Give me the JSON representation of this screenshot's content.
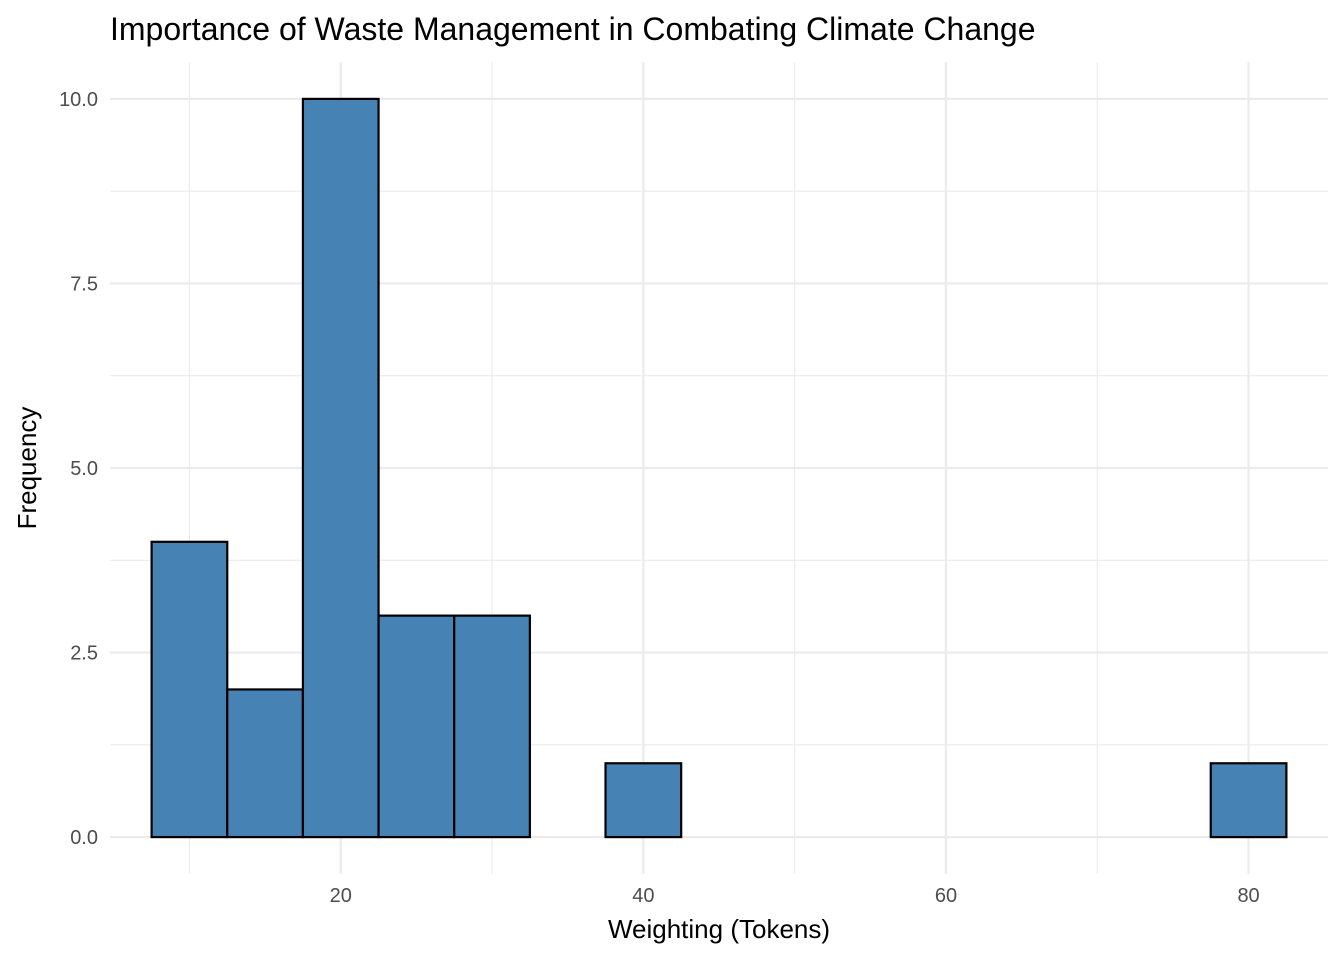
{
  "chart_data": {
    "type": "bar",
    "subtype": "histogram",
    "title": "Importance of Waste Management in Combating Climate Change",
    "xlabel": "Weighting (Tokens)",
    "ylabel": "Frequency",
    "bin_width": 5,
    "bins": [
      {
        "start": 7.5,
        "end": 12.5,
        "count": 4
      },
      {
        "start": 12.5,
        "end": 17.5,
        "count": 2
      },
      {
        "start": 17.5,
        "end": 22.5,
        "count": 10
      },
      {
        "start": 22.5,
        "end": 27.5,
        "count": 3
      },
      {
        "start": 27.5,
        "end": 32.5,
        "count": 3
      },
      {
        "start": 32.5,
        "end": 37.5,
        "count": 0
      },
      {
        "start": 37.5,
        "end": 42.5,
        "count": 1
      },
      {
        "start": 42.5,
        "end": 47.5,
        "count": 0
      },
      {
        "start": 47.5,
        "end": 52.5,
        "count": 0
      },
      {
        "start": 52.5,
        "end": 57.5,
        "count": 0
      },
      {
        "start": 57.5,
        "end": 62.5,
        "count": 0
      },
      {
        "start": 62.5,
        "end": 67.5,
        "count": 0
      },
      {
        "start": 67.5,
        "end": 72.5,
        "count": 0
      },
      {
        "start": 72.5,
        "end": 77.5,
        "count": 0
      },
      {
        "start": 77.5,
        "end": 82.5,
        "count": 1
      }
    ],
    "xlim": [
      4.75,
      85.25
    ],
    "ylim": [
      -0.5,
      10.5
    ],
    "x_ticks": [
      {
        "value": 20,
        "label": "20"
      },
      {
        "value": 40,
        "label": "40"
      },
      {
        "value": 60,
        "label": "60"
      },
      {
        "value": 80,
        "label": "80"
      }
    ],
    "x_minor_ticks": [
      10,
      30,
      50,
      70
    ],
    "y_ticks": [
      {
        "value": 0,
        "label": "0.0"
      },
      {
        "value": 2.5,
        "label": "2.5"
      },
      {
        "value": 5,
        "label": "5.0"
      },
      {
        "value": 7.5,
        "label": "7.5"
      },
      {
        "value": 10,
        "label": "10.0"
      }
    ],
    "y_minor_ticks": [
      1.25,
      3.75,
      6.25,
      8.75
    ],
    "grid": true,
    "legend": "none",
    "colors": {
      "fill": "#4682B4",
      "outline": "#000000",
      "grid": "#EBEBEB",
      "background": "#FFFFFF"
    }
  }
}
